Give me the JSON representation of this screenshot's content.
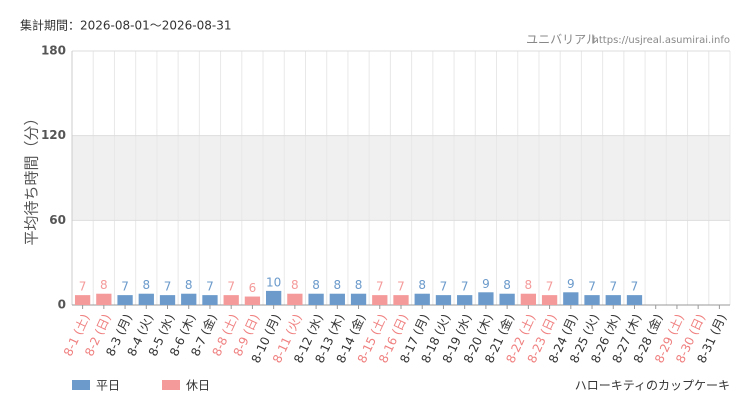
{
  "chart_data": {
    "type": "bar",
    "title": "集計期間：2026-08-01〜2026-08-31",
    "source_name": "ユニバリアル",
    "source_url": "https://usjreal.asumirai.info",
    "ylabel": "平均待ち時間（分）",
    "caption": "ハローキティのカップケーキ",
    "categories": [
      "8-1 (土)",
      "8-2 (日)",
      "8-3 (月)",
      "8-4 (火)",
      "8-5 (水)",
      "8-6 (木)",
      "8-7 (金)",
      "8-8 (土)",
      "8-9 (日)",
      "8-10 (月)",
      "8-11 (火)",
      "8-12 (水)",
      "8-13 (木)",
      "8-14 (金)",
      "8-15 (土)",
      "8-16 (日)",
      "8-17 (月)",
      "8-18 (火)",
      "8-19 (水)",
      "8-20 (木)",
      "8-21 (金)",
      "8-22 (土)",
      "8-23 (日)",
      "8-24 (月)",
      "8-25 (火)",
      "8-26 (水)",
      "8-27 (木)",
      "8-28 (金)",
      "8-29 (土)",
      "8-30 (日)",
      "8-31 (月)"
    ],
    "category_colors": [
      "#f08080",
      "#f08080",
      "#333333",
      "#333333",
      "#333333",
      "#333333",
      "#333333",
      "#f08080",
      "#f08080",
      "#333333",
      "#f08080",
      "#333333",
      "#333333",
      "#333333",
      "#f08080",
      "#f08080",
      "#333333",
      "#333333",
      "#333333",
      "#333333",
      "#333333",
      "#f08080",
      "#f08080",
      "#333333",
      "#333333",
      "#333333",
      "#333333",
      "#333333",
      "#f08080",
      "#f08080",
      "#333333"
    ],
    "series": [
      {
        "name": "平日",
        "color": "#6b9acb",
        "values": [
          null,
          null,
          7,
          8,
          7,
          8,
          7,
          null,
          null,
          10,
          null,
          8,
          8,
          8,
          null,
          null,
          8,
          7,
          7,
          9,
          8,
          null,
          null,
          9,
          7,
          7,
          7,
          null,
          null,
          null,
          null
        ]
      },
      {
        "name": "休日",
        "color": "#f59a9a",
        "values": [
          7,
          8,
          null,
          null,
          null,
          null,
          null,
          7,
          6,
          null,
          8,
          null,
          null,
          null,
          7,
          7,
          null,
          null,
          null,
          null,
          null,
          8,
          7,
          null,
          null,
          null,
          null,
          null,
          null,
          null,
          null
        ]
      }
    ],
    "ylim": [
      0,
      180
    ],
    "yticks": [
      0,
      60,
      120,
      180
    ],
    "grid": true
  }
}
